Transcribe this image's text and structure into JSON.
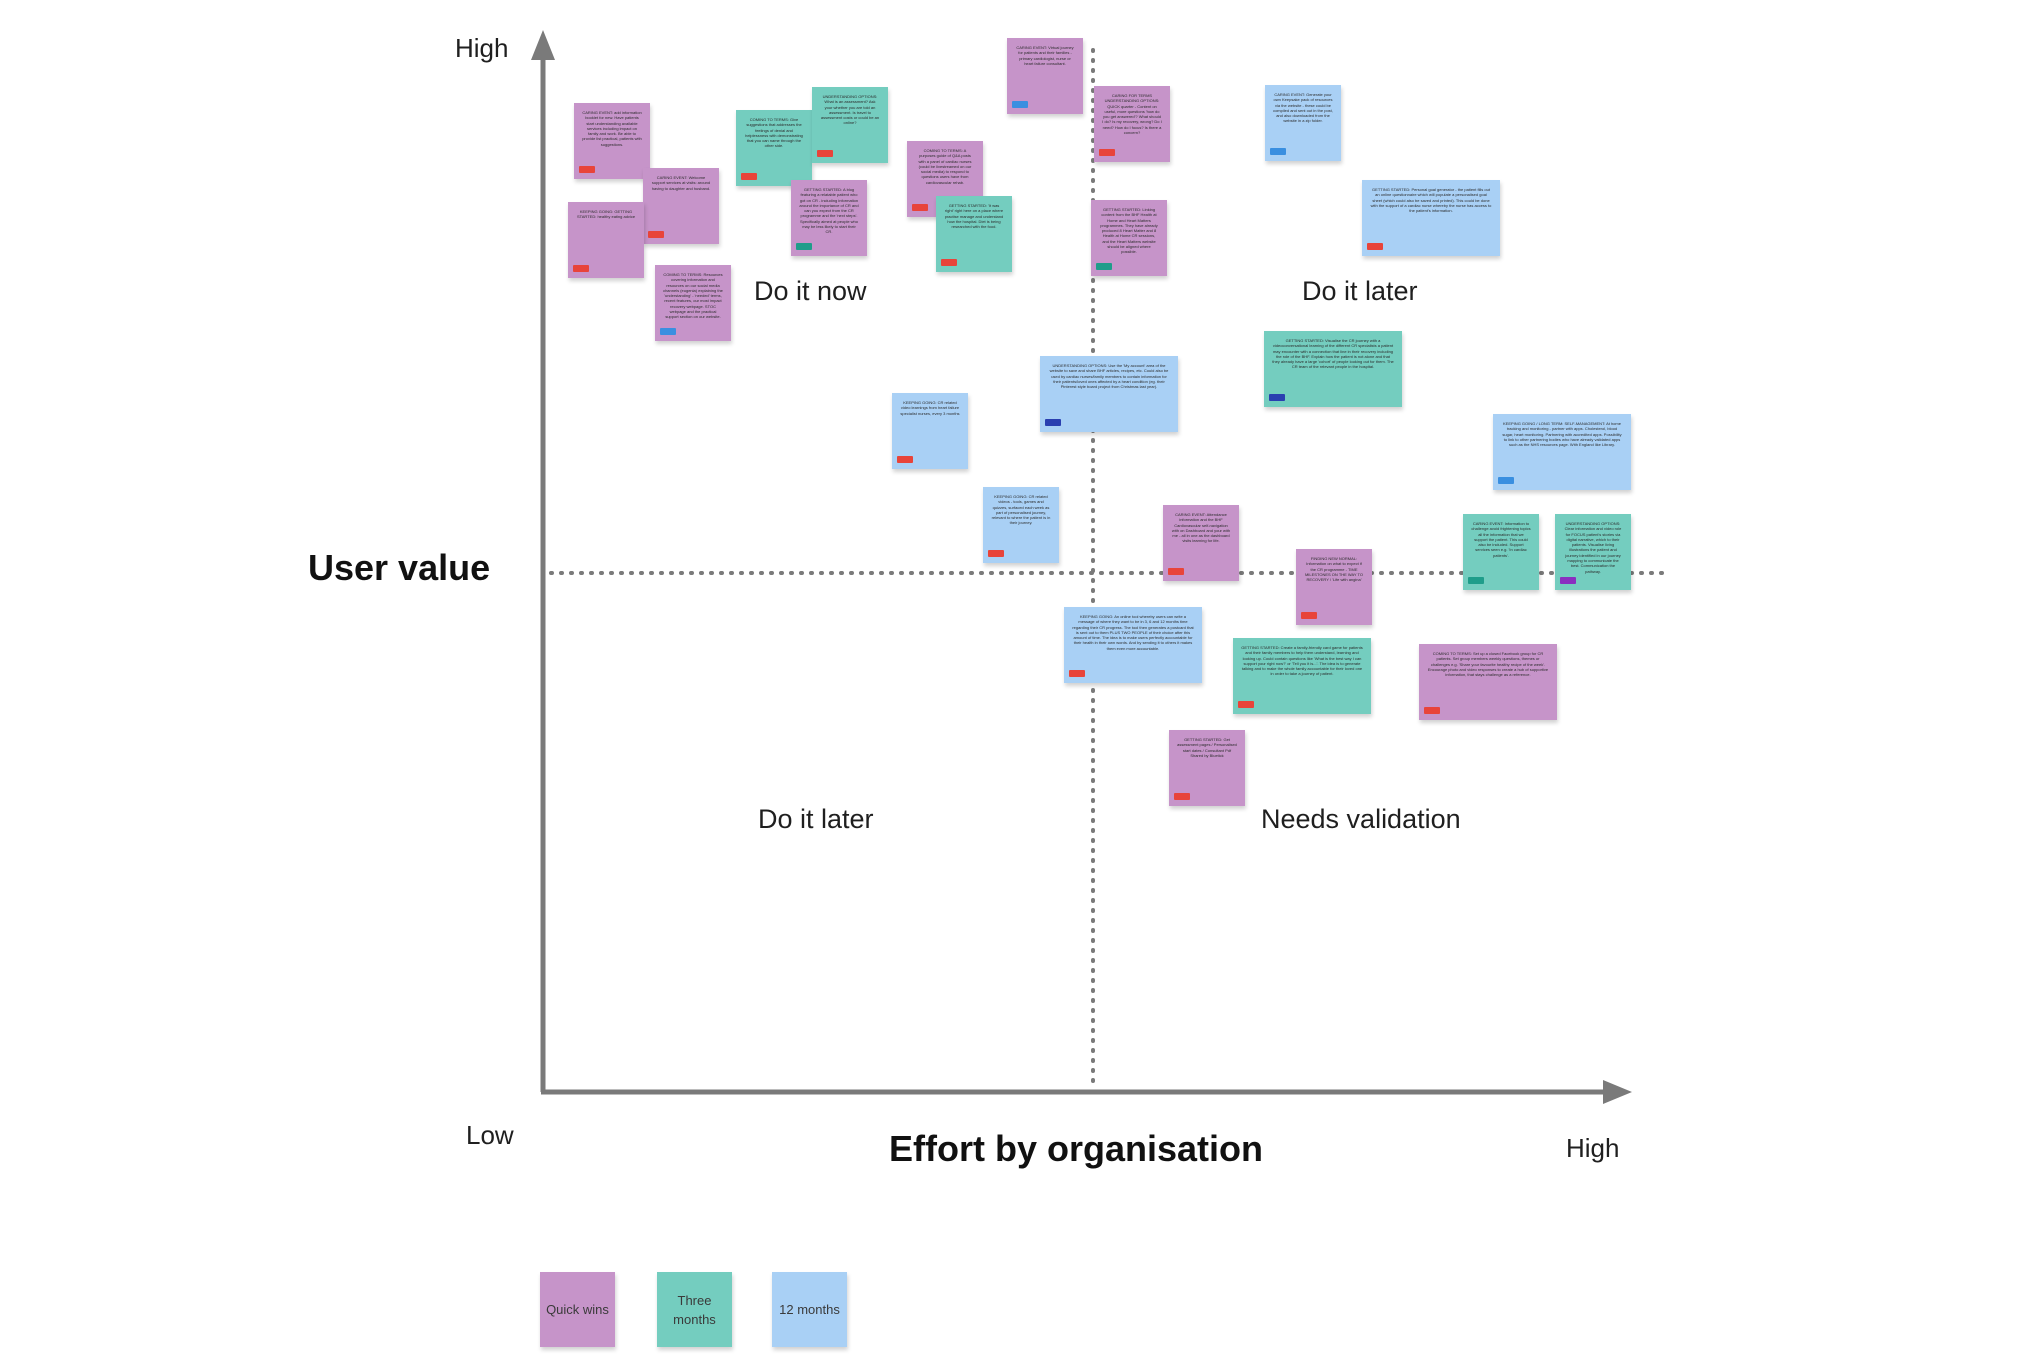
{
  "axes": {
    "y_title": "User value",
    "x_title": "Effort by organisation",
    "y_high": "High",
    "y_low": "Low",
    "x_high": "High"
  },
  "quadrants": {
    "top_left": "Do it now",
    "top_right": "Do it later",
    "bottom_left": "Do it later",
    "bottom_right": "Needs validation"
  },
  "colors": {
    "quick_wins": "#c694c9",
    "three_months": "#74cdbf",
    "twelve_months": "#a9d0f5",
    "tag_red": "#e8443a",
    "tag_teal": "#1f9d8a",
    "tag_blue": "#3a8fe0",
    "tag_navy": "#2a3fb0",
    "tag_violet": "#8a2fc0",
    "axis": "#7a7a7a"
  },
  "legend": [
    {
      "label": "Quick wins",
      "color": "#c694c9"
    },
    {
      "label": "Three months",
      "color": "#74cdbf"
    },
    {
      "label": "12 months",
      "color": "#a9d0f5"
    }
  ],
  "stickies": [
    {
      "text": "CARING EVENT: add information booklet for new. Have patients start understanding available services including impact on family and work. Be able to provide list practical, patients with suggestions.",
      "color": "purple",
      "tag": "red"
    },
    {
      "text": "CARING EVENT: Welcome support services at visits: around having to daughter and husband.",
      "color": "purple",
      "tag": "red"
    },
    {
      "text": "KEEPING GOING: GETTING STARTED: healthy eating advice",
      "color": "purple",
      "tag": "red"
    },
    {
      "text": "COMING TO TERMS: Resources covering information and resources on our social media channels (eugenia) explaining the 'understanding' - 'needed' terms, recent features, our most impact recovery webpage. STOC webpage and the practical support section on our website.",
      "color": "purple",
      "tag": "blue"
    },
    {
      "text": "COMING TO TERMS: Give suggestions that addresses the feelings of denial and helplessness with demonstrating that you can name through the other side.",
      "color": "teal",
      "tag": "red"
    },
    {
      "text": "UNDERSTANDING OPTIONS: What is an assessment? Ask your whether you are told an assessment. Is travel to assessment costs or could be an online?",
      "color": "teal",
      "tag": "red"
    },
    {
      "text": "GETTING STARTED: A blog featuring a relatable patient who got on CR - including information around the importance of CR and can you expect from the CR programme and the 'next steps'. Specifically aimed at people who may be less likely to start their CR.",
      "color": "purple",
      "tag": "teal"
    },
    {
      "text": "COMING TO TERMS: A purposes guide of Q&A posts with a panel of cardiac nurses (could be livestreamed on our social media) to respond to questions users have from cardiovascular rehab.",
      "color": "purple",
      "tag": "red"
    },
    {
      "text": "GETTING STARTED: 'It was right' right here on a place where practise manage and understand how the hospital. Diet is being researched with the food.",
      "color": "teal",
      "tag": "red"
    },
    {
      "text": "CARING EVENT: Virtual journey for patients and their families - primary cardiologist, nurse or heart failure consultant.",
      "color": "purple",
      "tag": "blue"
    },
    {
      "text": "CARING FOR TERMS UNDERSTANDING OPTIONS: QUICK quarter - Content on useful, more questions 'how do you get answered'? What should I do? Is my recovery, wrong? Do I need? How do I focus? Is there a concern? ",
      "color": "purple",
      "tag": "red"
    },
    {
      "text": "GETTING STARTED: Linking content from the BHF Health at Home and Heart Matters programmes. They have already produced 8 Heart Matter and 8 Health at Home CR sessions, and the Heart Matters website should be aligned where possible.",
      "color": "purple",
      "tag": "teal"
    },
    {
      "text": "CARING EVENT: Generate your own Keepsake pack of resources via the website - these could be compiled and sent out in the post, and also downloaded from the website in a zip folder.",
      "color": "blue",
      "tag": "blue"
    },
    {
      "text": "GETTING STARTED: Personal goal generator - the patient fills out an online questionnaire which will populate a personalised goal sheet (which could also be saved and printed). This could be done with the support of a cardiac nurse whereby the nurse has access to the patient's information.",
      "color": "blue",
      "tag": "red"
    },
    {
      "text": "GETTING STARTED: Visualise the CR journey with a videoconversational learning of the different CR specialists a patient may encounter with a connection that line in their recovery including the role of the BHF. Explain how the patient is not alone and that they already have a large 'cohort' of people looking out for them. The CR team of the relevant people in the hospital.",
      "color": "teal",
      "tag": "navy"
    },
    {
      "text": "UNDERSTANDING OPTIONS: Use the 'My account' area of the website to save and share BHF articles, recipes, etc. Could also be used by cardiac nurses/family members to contain information for their patients/loved ones affected by a heart condition (eg. their Pinterest style board project from Christmas last year).",
      "color": "blue",
      "tag": "navy"
    },
    {
      "text": "KEEPING GOING: CR related video learnings from heart failure specialist nurses, every 3 months",
      "color": "blue",
      "tag": "red"
    },
    {
      "text": "KEEPING GOING: CR related videos - tools, games and quizzes, surfaced each week as part of personalised journey, relevant to where the patient is in their journey.",
      "color": "blue",
      "tag": "red"
    },
    {
      "text": "KEEPING GOING / LONG TERM: SELF-MANAGEMENT: At home tracking and monitoring - partner with apps. Cholesterol, blood sugar, heart monitoring. Partnering with accredited apps. Possibility to link to other partnering bodies who have already validated apps such as the NHS resources page. With England like Library.",
      "color": "blue",
      "tag": "blue"
    },
    {
      "text": "CARING EVENT: Attendance information and the BHF Cardiovascular self-navigation with on Dashboard and your with me - all in one as the dashboard visits learning for life.",
      "color": "purple",
      "tag": "red"
    },
    {
      "text": "CARING EVENT: Information to challenge avoid frightening topics all the information that we support the patient. This could also be included. Support services seen e.g. 'In cardiac patients'.",
      "color": "teal",
      "tag": "teal"
    },
    {
      "text": "UNDERSTANDING OPTIONS: Clear information and video role for FOCUS patient's stories via digital narrative, which to their patients. Visualise living illustrations the patient and journey identified in our journey mapping to communicate the best. Communication the pathway.",
      "color": "teal",
      "tag": "violet"
    },
    {
      "text": "FINDING NEW NORMAL: Information on what to expect if the CR programme - TIME MILESTONES ON THE WAY TO RECOVERY / 'Life with angina'",
      "color": "purple",
      "tag": "red"
    },
    {
      "text": "KEEPING GOING: An online tool whereby users can write a message of where they want to be in 3, 6 and 12 months time regarding their CR progress. The tool then generates a postcard that is sent out to them PLUS TWO PEOPLE of their choice after this amount of time. The idea is to make users perfectly accountable for their health in their own words. And by sending it to others it makes them even more accountable.",
      "color": "blue",
      "tag": "red"
    },
    {
      "text": "GETTING STARTED: Create a family-friendly card game for patients and their family members to help them understand, learning and looking up. Could contain questions like 'What is the best way I can support your right now?' or 'Tell you it is...'. The idea is to generate talking and to make the whole family accountable for their loved one in order to take a journey of patient.",
      "color": "teal",
      "tag": "red"
    },
    {
      "text": "COMING TO TERMS: Set up a closed Facebook group for CR patients. Set group members weekly questions, themes or challenges e.g. 'Share your favourite healthy recipe of the week'. Encourage photo and video responses to create a hub of supportive information, that stays challenge as a reference.",
      "color": "purple",
      "tag": "red"
    },
    {
      "text": "GETTING STARTED: Get assessment pages / Personalised start dates / Consultant Pdf Shared by Bluetick",
      "color": "purple",
      "tag": "red"
    }
  ]
}
